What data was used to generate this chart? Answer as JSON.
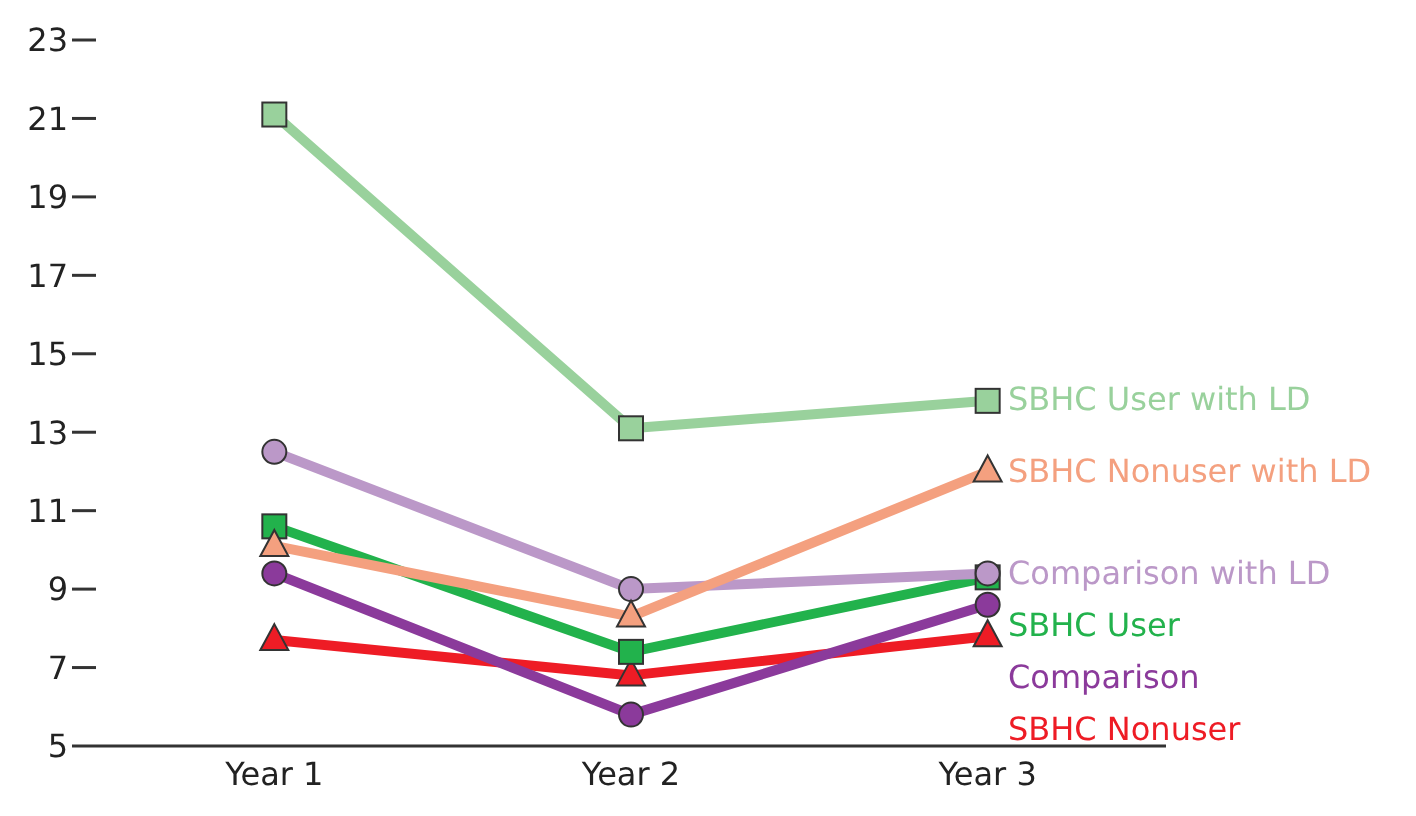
{
  "chart_data": {
    "type": "line",
    "categories": [
      "Year 1",
      "Year 2",
      "Year 3"
    ],
    "ylim": [
      5,
      23
    ],
    "yticks": [
      5,
      7,
      9,
      11,
      13,
      15,
      17,
      19,
      21,
      23
    ],
    "grid": false,
    "legend": "right",
    "series": [
      {
        "name": "SBHC User with LD",
        "color": "#99d19c",
        "marker": "square",
        "values": [
          21.1,
          13.1,
          13.8
        ]
      },
      {
        "name": "SBHC Nonuser with LD",
        "color": "#f4a07f",
        "marker": "triangle",
        "values": [
          10.1,
          8.3,
          12.0
        ]
      },
      {
        "name": "Comparison with LD",
        "color": "#bb98c8",
        "marker": "circle",
        "values": [
          12.5,
          9.0,
          9.4
        ]
      },
      {
        "name": "SBHC User",
        "color": "#22b24c",
        "marker": "square",
        "values": [
          10.6,
          7.4,
          9.3
        ]
      },
      {
        "name": "Comparison",
        "color": "#8b3a9b",
        "marker": "circle",
        "values": [
          9.4,
          5.8,
          8.6
        ]
      },
      {
        "name": "SBHC Nonuser",
        "color": "#ee1c25",
        "marker": "triangle",
        "values": [
          7.7,
          6.8,
          7.8
        ]
      }
    ]
  }
}
